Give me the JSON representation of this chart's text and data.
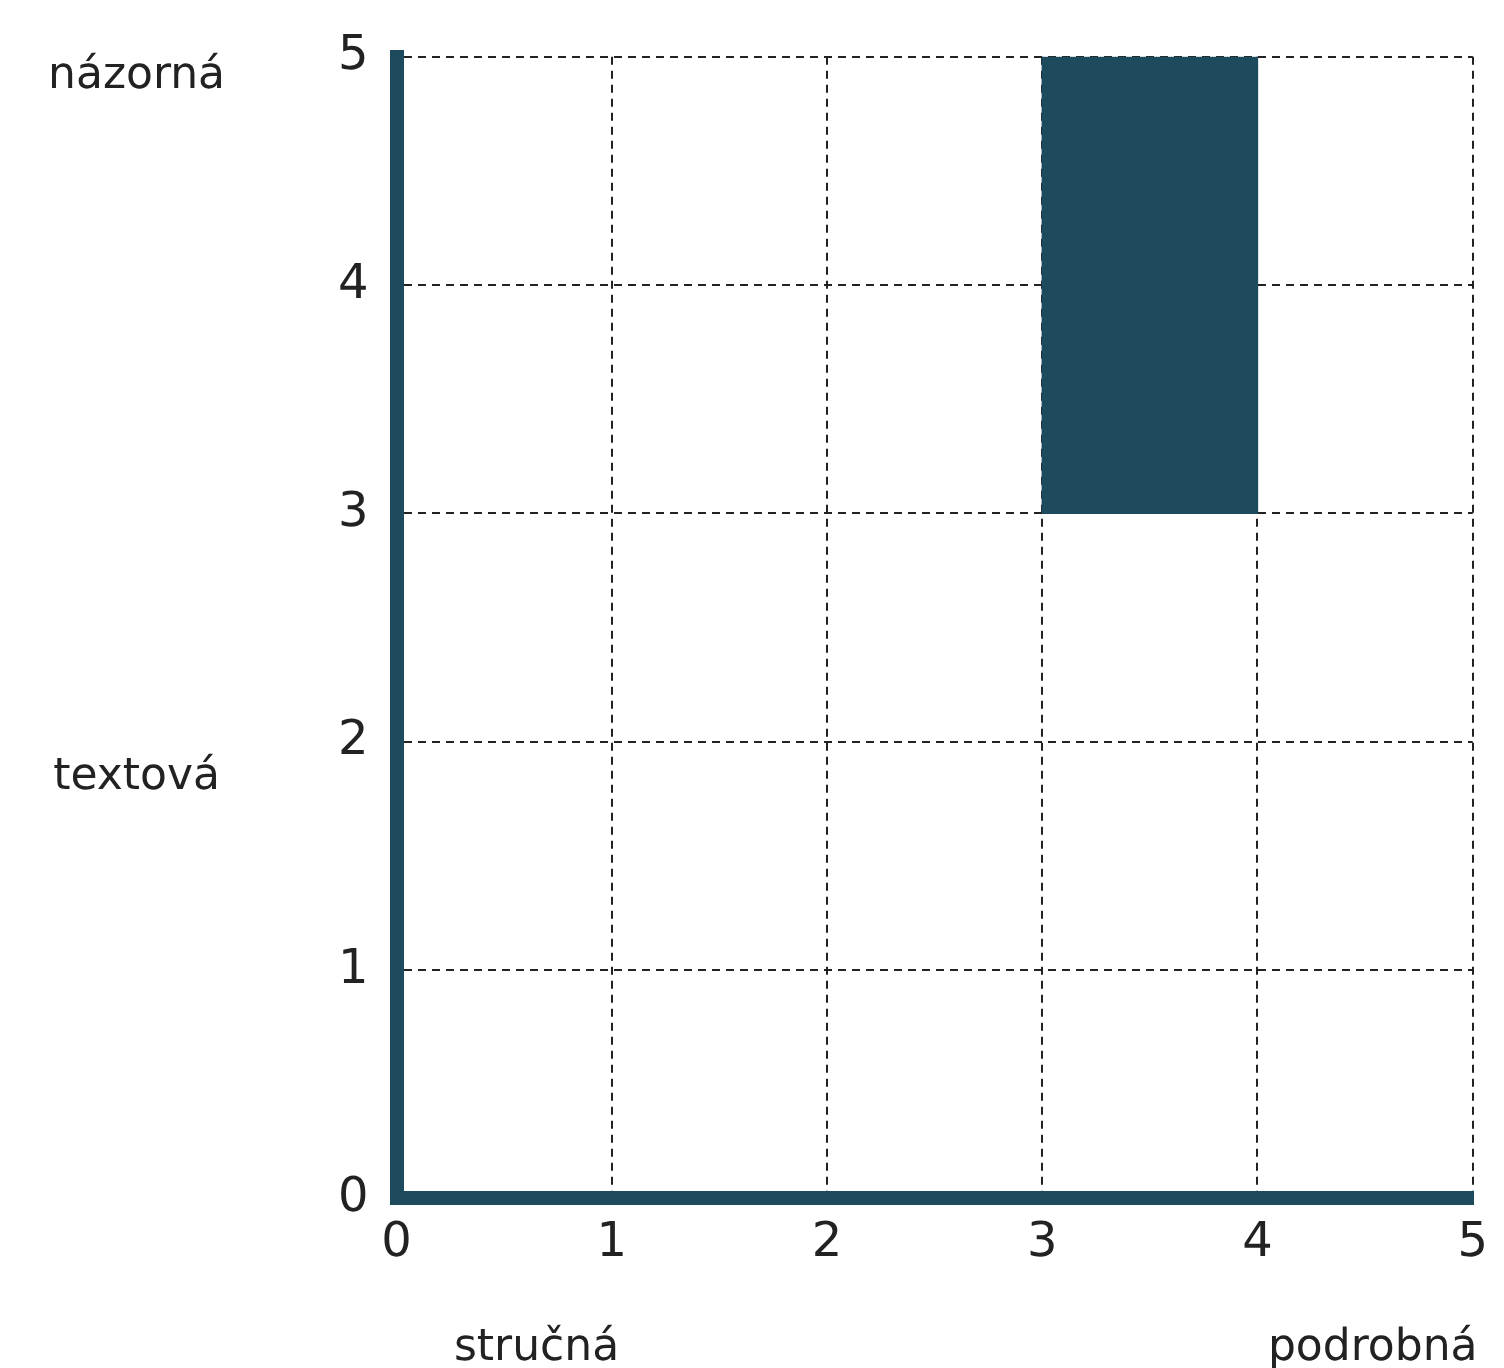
{
  "chart_data": {
    "type": "bar",
    "x": [
      3.5
    ],
    "values": [
      2
    ],
    "base": [
      3
    ],
    "color": "#1d4a5c",
    "xlim": [
      0,
      5
    ],
    "ylim": [
      0,
      5
    ],
    "xticks": [
      0,
      1,
      2,
      3,
      4,
      5
    ],
    "yticks": [
      0,
      1,
      2,
      3,
      4,
      5
    ],
    "grid": true,
    "line_style": "dashed",
    "annotations": [
      "názorná",
      "textová",
      "stručná",
      "podrobná"
    ]
  }
}
